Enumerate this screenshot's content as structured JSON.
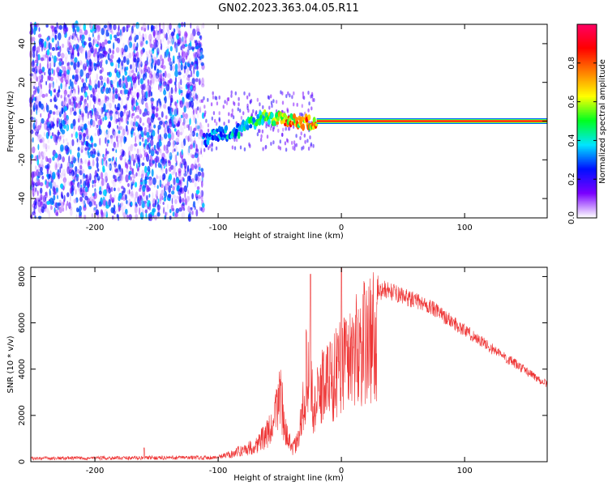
{
  "title": "GN02.2023.363.04.05.R11",
  "chart_data": [
    {
      "type": "heatmap",
      "xlabel": "Height of straight line (km)",
      "ylabel": "Frequency (Hz)",
      "xlim": [
        -252,
        167
      ],
      "ylim": [
        -50,
        50
      ],
      "xticks": [
        -200,
        -100,
        0,
        100
      ],
      "yticks": [
        -40,
        -20,
        0,
        20,
        40
      ],
      "colorbar": {
        "label": "Normalized spectral amplitude",
        "range": [
          0,
          1
        ],
        "ticks": [
          0.0,
          0.2,
          0.4,
          0.6,
          0.8
        ],
        "tick_labels": [
          "0.0",
          "0.2",
          "0.4",
          "0.6",
          "0.8"
        ],
        "colors": [
          "#ffffff",
          "#7a00ff",
          "#0010ff",
          "#00e5ff",
          "#00ff20",
          "#ffff00",
          "#ff8000",
          "#ff0000",
          "#ff0066"
        ]
      },
      "signal": {
        "noise_region_x": [
          -252,
          -112
        ],
        "ridge_points": [
          {
            "x": -112,
            "y": -10,
            "a": 0.35
          },
          {
            "x": -100,
            "y": -7,
            "a": 0.4
          },
          {
            "x": -85,
            "y": -5,
            "a": 0.45
          },
          {
            "x": -75,
            "y": -2,
            "a": 0.5
          },
          {
            "x": -65,
            "y": 2,
            "a": 0.55
          },
          {
            "x": -55,
            "y": 2,
            "a": 0.7
          },
          {
            "x": -45,
            "y": 0,
            "a": 0.85
          },
          {
            "x": -30,
            "y": -1,
            "a": 0.8
          },
          {
            "x": -20,
            "y": -1,
            "a": 0.9
          },
          {
            "x": 0,
            "y": 0,
            "a": 0.95
          },
          {
            "x": 167,
            "y": 0,
            "a": 0.95
          }
        ],
        "line_start_x": -20,
        "line_end_x": 167
      }
    },
    {
      "type": "line",
      "xlabel": "Height of straight line (km)",
      "ylabel": "SNR (10 * v/v)",
      "xlim": [
        -252,
        167
      ],
      "ylim": [
        0,
        8400
      ],
      "xticks": [
        -200,
        -100,
        0,
        100
      ],
      "yticks": [
        0,
        2000,
        4000,
        6000,
        8000
      ],
      "color": "#ee3333",
      "envelope": [
        {
          "x": -252,
          "y": 200
        },
        {
          "x": -100,
          "y": 250
        },
        {
          "x": -85,
          "y": 550
        },
        {
          "x": -70,
          "y": 900
        },
        {
          "x": -55,
          "y": 2000
        },
        {
          "x": -50,
          "y": 4200
        },
        {
          "x": -45,
          "y": 1600
        },
        {
          "x": -40,
          "y": 700
        },
        {
          "x": -35,
          "y": 1200
        },
        {
          "x": -30,
          "y": 3800
        },
        {
          "x": -26,
          "y": 7000
        },
        {
          "x": -23,
          "y": 2800
        },
        {
          "x": -15,
          "y": 4500
        },
        {
          "x": -5,
          "y": 5000
        },
        {
          "x": 0,
          "y": 5800
        },
        {
          "x": 10,
          "y": 6300
        },
        {
          "x": 25,
          "y": 7200
        },
        {
          "x": 35,
          "y": 7600
        },
        {
          "x": 45,
          "y": 7400
        },
        {
          "x": 70,
          "y": 6900
        },
        {
          "x": 100,
          "y": 5800
        },
        {
          "x": 130,
          "y": 4700
        },
        {
          "x": 167,
          "y": 3400
        }
      ],
      "spikes": [
        {
          "x": -25,
          "y": 8100
        },
        {
          "x": 0,
          "y": 8400
        },
        {
          "x": -160,
          "y": 600
        }
      ]
    }
  ]
}
